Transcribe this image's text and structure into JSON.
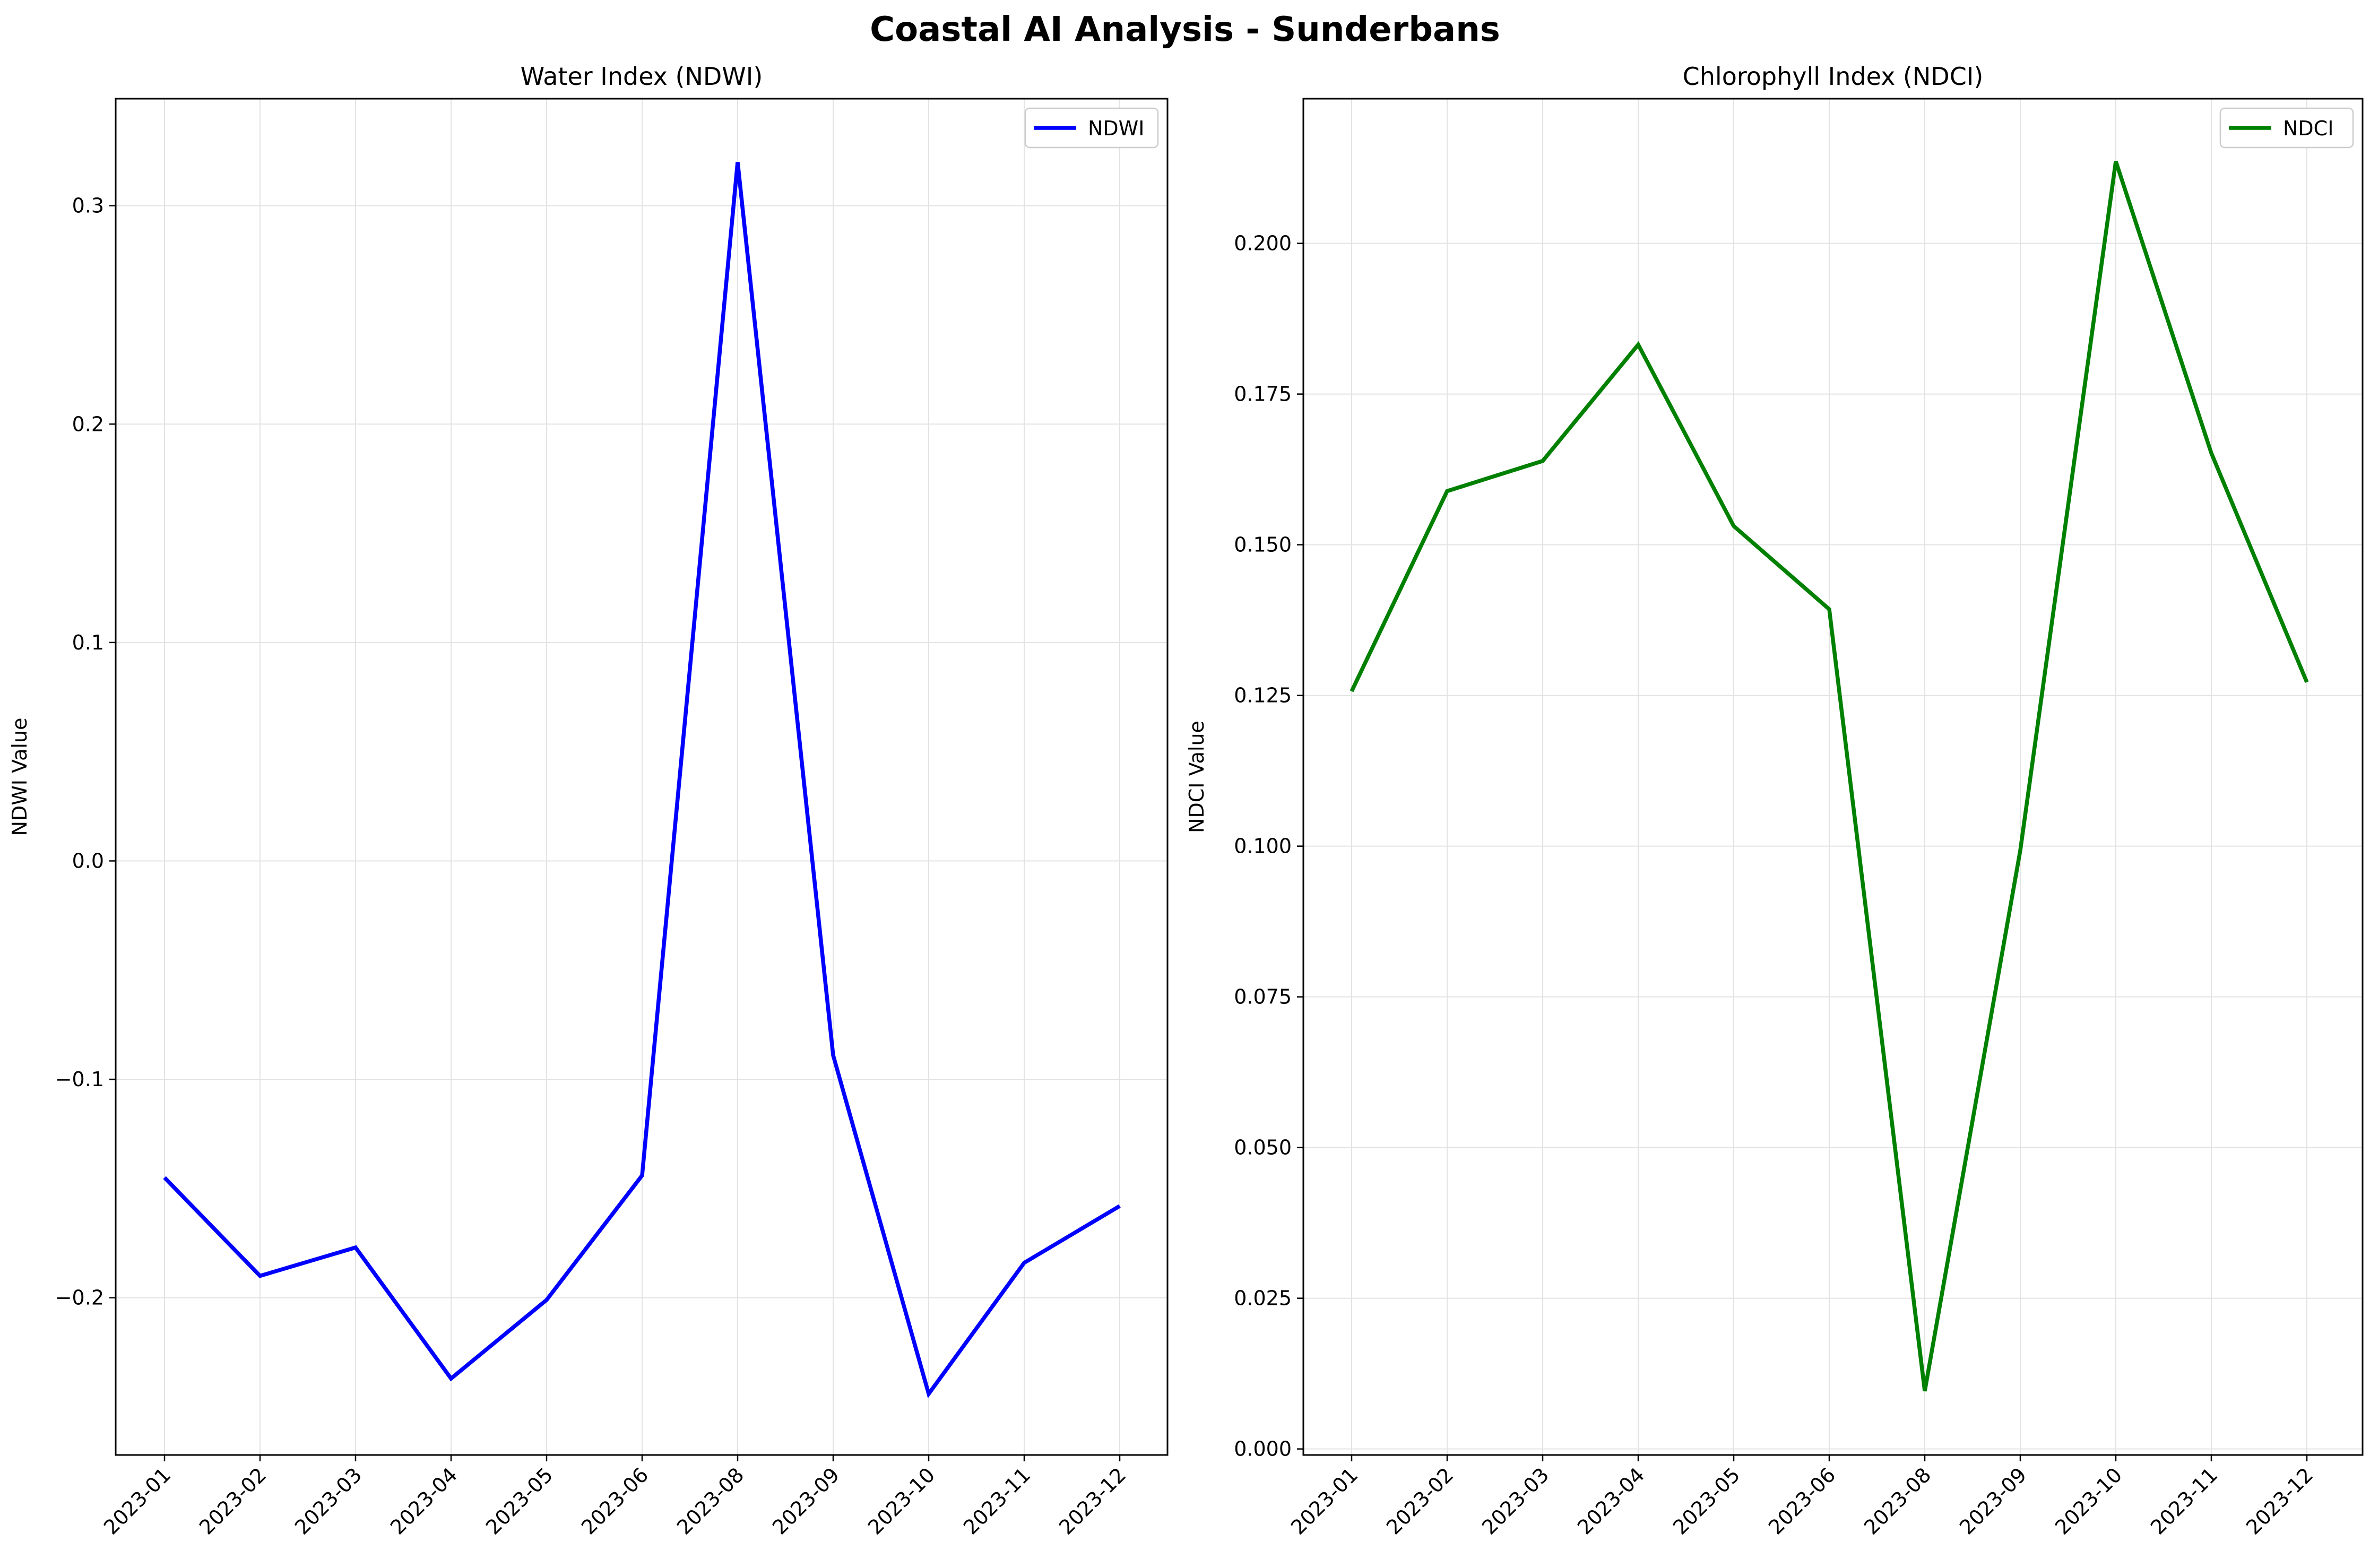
{
  "figure": {
    "title": "Coastal AI Analysis - Sunderbans"
  },
  "chart_data": [
    {
      "type": "line",
      "title": "Water Index (NDWI)",
      "xlabel": "",
      "ylabel": "NDWI Value",
      "categories": [
        "2023-01",
        "2023-02",
        "2023-03",
        "2023-04",
        "2023-05",
        "2023-06",
        "2023-08",
        "2023-09",
        "2023-10",
        "2023-11",
        "2023-12"
      ],
      "series": [
        {
          "name": "NDWI",
          "color": "#0000ff",
          "values": [
            -0.145,
            -0.19,
            -0.177,
            -0.237,
            -0.201,
            -0.144,
            0.32,
            -0.089,
            -0.244,
            -0.184,
            -0.158
          ]
        }
      ],
      "ylim": [
        -0.272,
        0.349
      ],
      "yticks": [
        -0.2,
        -0.1,
        0.0,
        0.1,
        0.2,
        0.3
      ],
      "ytick_labels": [
        "−0.2",
        "−0.1",
        "0.0",
        "0.1",
        "0.2",
        "0.3"
      ],
      "grid": true,
      "legend": "top-right"
    },
    {
      "type": "line",
      "title": "Chlorophyll Index (NDCI)",
      "xlabel": "",
      "ylabel": "NDCI Value",
      "categories": [
        "2023-01",
        "2023-02",
        "2023-03",
        "2023-04",
        "2023-05",
        "2023-06",
        "2023-08",
        "2023-09",
        "2023-10",
        "2023-11",
        "2023-12"
      ],
      "series": [
        {
          "name": "NDCI",
          "color": "#008000",
          "values": [
            0.1257,
            0.1589,
            0.1639,
            0.1832,
            0.1531,
            0.1393,
            0.0096,
            0.0993,
            0.2136,
            0.1652,
            0.1272
          ]
        }
      ],
      "ylim": [
        -0.001,
        0.224
      ],
      "yticks": [
        0.0,
        0.025,
        0.05,
        0.075,
        0.1,
        0.125,
        0.15,
        0.175,
        0.2
      ],
      "ytick_labels": [
        "0.000",
        "0.025",
        "0.050",
        "0.075",
        "0.100",
        "0.125",
        "0.150",
        "0.175",
        "0.200"
      ],
      "grid": true,
      "legend": "top-right"
    }
  ]
}
